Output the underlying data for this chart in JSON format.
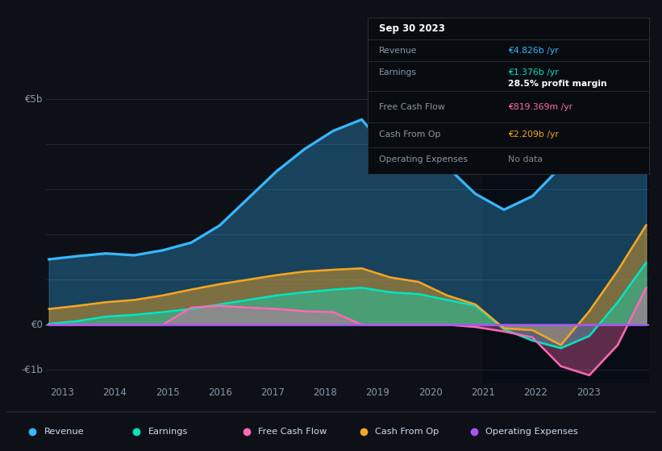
{
  "bg_color": "#0d1117",
  "ylim": [
    -1300000000.0,
    5500000000.0
  ],
  "x_ticks": [
    2013,
    2014,
    2015,
    2016,
    2017,
    2018,
    2019,
    2020,
    2021,
    2022,
    2023
  ],
  "legend_items": [
    {
      "label": "Revenue",
      "color": "#38b6ff"
    },
    {
      "label": "Earnings",
      "color": "#00e5c0"
    },
    {
      "label": "Free Cash Flow",
      "color": "#ff69b4"
    },
    {
      "label": "Cash From Op",
      "color": "#f5a623"
    },
    {
      "label": "Operating Expenses",
      "color": "#a855f7"
    }
  ],
  "tooltip_date": "Sep 30 2023",
  "tooltip_rows": [
    {
      "label": "Revenue",
      "value": "€4.826b /yr",
      "value_color": "#38b6ff",
      "bold": false
    },
    {
      "label": "Earnings",
      "value": "€1.376b /yr",
      "value_color": "#00e5c0",
      "bold": false
    },
    {
      "label": "",
      "value": "28.5% profit margin",
      "value_color": "#ffffff",
      "bold": true
    },
    {
      "label": "Free Cash Flow",
      "value": "€819.369m /yr",
      "value_color": "#ff69b4",
      "bold": false
    },
    {
      "label": "Cash From Op",
      "value": "€2.209b /yr",
      "value_color": "#f5a623",
      "bold": false
    },
    {
      "label": "Operating Expenses",
      "value": "No data",
      "value_color": "#888888",
      "bold": false
    }
  ],
  "revenue": [
    1450000000,
    1520000000,
    1580000000,
    1540000000,
    1650000000,
    1820000000,
    2200000000,
    2800000000,
    3400000000,
    3900000000,
    4300000000,
    4550000000,
    3800000000,
    4200000000,
    3500000000,
    2900000000,
    2550000000,
    2850000000,
    3500000000,
    4100000000,
    4600000000,
    4826000000
  ],
  "earnings": [
    20000000,
    80000000,
    180000000,
    220000000,
    280000000,
    350000000,
    450000000,
    550000000,
    650000000,
    720000000,
    780000000,
    820000000,
    720000000,
    680000000,
    550000000,
    420000000,
    -100000000,
    -350000000,
    -520000000,
    -250000000,
    500000000,
    1376000000
  ],
  "free_cash_flow": [
    0,
    0,
    0,
    0,
    0,
    380000000,
    420000000,
    380000000,
    350000000,
    300000000,
    280000000,
    0,
    0,
    0,
    0,
    -50000000,
    -150000000,
    -280000000,
    -920000000,
    -1120000000,
    -450000000,
    819000000
  ],
  "cash_from_op": [
    350000000,
    420000000,
    500000000,
    550000000,
    650000000,
    780000000,
    900000000,
    1000000000,
    1100000000,
    1180000000,
    1220000000,
    1250000000,
    1050000000,
    950000000,
    650000000,
    450000000,
    -80000000,
    -120000000,
    -450000000,
    300000000,
    1200000000,
    2209000000
  ],
  "op_expenses": [
    0,
    0,
    0,
    0,
    0,
    0,
    0,
    0,
    0,
    0,
    0,
    0,
    0,
    0,
    0,
    0,
    0,
    0,
    0,
    0,
    0,
    0
  ]
}
